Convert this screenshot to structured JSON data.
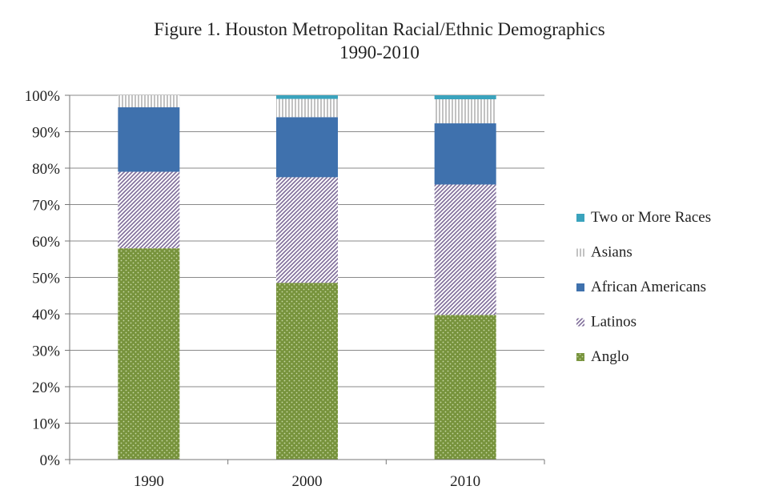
{
  "chart_data": {
    "type": "bar",
    "stacked": true,
    "title": "Figure 1. Houston Metropolitan Racial/Ethnic Demographics",
    "subtitle": "1990-2010",
    "xlabel": "",
    "ylabel": "",
    "categories": [
      "1990",
      "2000",
      "2010"
    ],
    "ylim": [
      0,
      100
    ],
    "yticks": [
      "0%",
      "10%",
      "20%",
      "30%",
      "40%",
      "50%",
      "60%",
      "70%",
      "80%",
      "90%",
      "100%"
    ],
    "legend_position": "right",
    "series": [
      {
        "name": "Anglo",
        "color": "#77933c",
        "pattern": "dots",
        "values": [
          58,
          48.5,
          39.7
        ]
      },
      {
        "name": "Latinos",
        "color": "#7e6b99",
        "pattern": "diagonal",
        "values": [
          21,
          29,
          35.8
        ]
      },
      {
        "name": "African Americans",
        "color": "#3f71ad",
        "pattern": "solid",
        "values": [
          17.7,
          16.5,
          16.8
        ]
      },
      {
        "name": "Asians",
        "color": "#9a9a9a",
        "pattern": "vertical",
        "values": [
          3.3,
          5.0,
          6.6
        ]
      },
      {
        "name": "Two or More Races",
        "color": "#3aa3bd",
        "pattern": "solid",
        "values": [
          0,
          1.0,
          1.1
        ]
      }
    ]
  }
}
